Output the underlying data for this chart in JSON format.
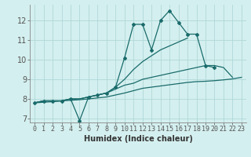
{
  "title": "",
  "xlabel": "Humidex (Indice chaleur)",
  "bg_color": "#d4efef",
  "grid_color": "#afd8d8",
  "line_color": "#1a6b6b",
  "x_values": [
    0,
    1,
    2,
    3,
    4,
    5,
    6,
    7,
    8,
    9,
    10,
    11,
    12,
    13,
    14,
    15,
    16,
    17,
    18,
    19,
    20,
    21,
    22,
    23
  ],
  "line1": [
    7.8,
    7.9,
    7.9,
    7.9,
    8.0,
    6.9,
    8.1,
    8.2,
    8.3,
    8.6,
    10.1,
    11.8,
    11.8,
    10.5,
    12.0,
    12.5,
    11.9,
    11.3,
    11.3,
    9.7,
    9.6,
    null,
    null,
    null
  ],
  "line2": [
    7.8,
    7.9,
    7.9,
    7.9,
    8.0,
    8.0,
    8.1,
    8.2,
    8.3,
    8.6,
    9.0,
    9.5,
    9.9,
    10.2,
    10.5,
    10.7,
    10.9,
    11.1,
    null,
    null,
    null,
    null,
    null,
    null
  ],
  "line3": [
    7.8,
    7.9,
    7.9,
    7.9,
    8.0,
    8.0,
    8.1,
    8.2,
    8.3,
    8.5,
    8.7,
    8.8,
    9.0,
    9.1,
    9.2,
    9.3,
    9.4,
    9.5,
    9.6,
    9.7,
    9.7,
    9.6,
    9.1,
    null
  ],
  "line4": [
    7.8,
    7.83,
    7.86,
    7.9,
    7.93,
    7.96,
    8.0,
    8.05,
    8.1,
    8.2,
    8.3,
    8.42,
    8.54,
    8.6,
    8.66,
    8.72,
    8.78,
    8.84,
    8.88,
    8.9,
    8.93,
    8.97,
    9.02,
    9.1
  ],
  "ylim": [
    6.8,
    12.8
  ],
  "xlim": [
    -0.5,
    23.5
  ],
  "yticks": [
    7,
    8,
    9,
    10,
    11,
    12
  ],
  "xticks": [
    0,
    1,
    2,
    3,
    4,
    5,
    6,
    7,
    8,
    9,
    10,
    11,
    12,
    13,
    14,
    15,
    16,
    17,
    18,
    19,
    20,
    21,
    22,
    23
  ],
  "xlabel_fontsize": 7,
  "tick_fontsize": 6,
  "ytick_fontsize": 7
}
